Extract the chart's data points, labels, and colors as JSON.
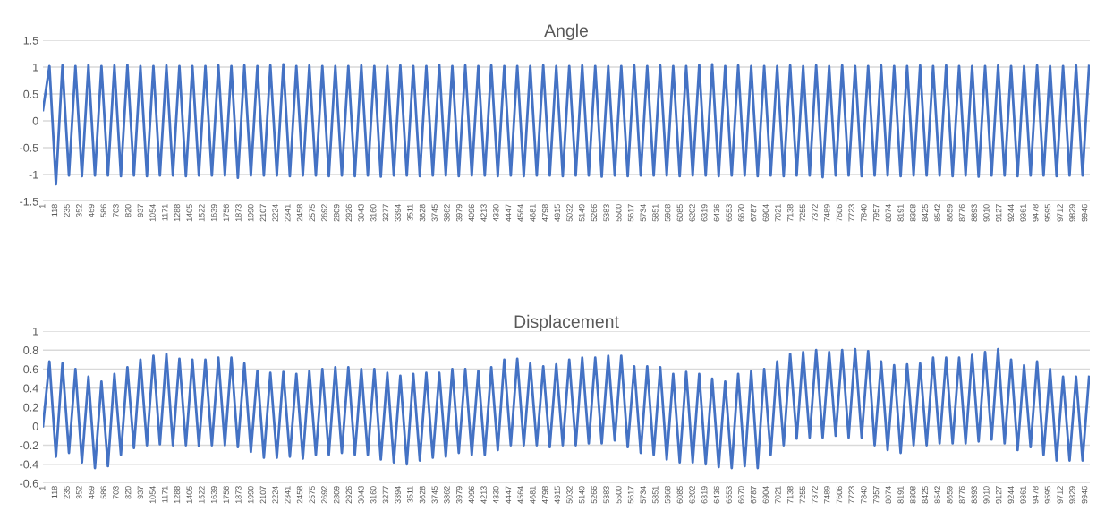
{
  "chart_data": [
    {
      "type": "line",
      "title": "Angle",
      "grid": "y",
      "line_style": "solid",
      "marker": "none",
      "xlim": [
        1,
        9990
      ],
      "xticks": [
        1,
        118,
        235,
        352,
        469,
        586,
        703,
        820,
        937,
        1054,
        1171,
        1288,
        1405,
        1522,
        1639,
        1756,
        1873,
        1990,
        2107,
        2224,
        2341,
        2458,
        2575,
        2692,
        2809,
        2926,
        3043,
        3160,
        3277,
        3394,
        3511,
        3628,
        3745,
        3862,
        3979,
        4096,
        4213,
        4330,
        4447,
        4564,
        4681,
        4798,
        4915,
        5032,
        5149,
        5266,
        5383,
        5500,
        5617,
        5734,
        5851,
        5968,
        6085,
        6202,
        6319,
        6436,
        6553,
        6670,
        6787,
        6904,
        7021,
        7138,
        7255,
        7372,
        7489,
        7606,
        7723,
        7840,
        7957,
        8074,
        8191,
        8308,
        8425,
        8542,
        8659,
        8776,
        8893,
        9010,
        9127,
        9244,
        9361,
        9478,
        9595,
        9712,
        9829,
        9946
      ],
      "ylim": [
        -1.5,
        1.5
      ],
      "yticks": [
        {
          "value": -1.5,
          "label": "-1.5"
        },
        {
          "value": -1,
          "label": "-1"
        },
        {
          "value": -0.5,
          "label": "-0.5"
        },
        {
          "value": 0,
          "label": "0"
        },
        {
          "value": 0.5,
          "label": "0.5"
        },
        {
          "value": 1,
          "label": "1"
        },
        {
          "value": 1.5,
          "label": "1.5"
        }
      ],
      "x": [
        1,
        63,
        125,
        187,
        249,
        311,
        373,
        435,
        497,
        559,
        621,
        683,
        745,
        807,
        869,
        931,
        993,
        1055,
        1117,
        1179,
        1241,
        1303,
        1365,
        1427,
        1489,
        1551,
        1613,
        1675,
        1737,
        1799,
        1861,
        1923,
        1985,
        2047,
        2109,
        2171,
        2233,
        2295,
        2357,
        2419,
        2481,
        2543,
        2605,
        2667,
        2729,
        2791,
        2853,
        2915,
        2977,
        3039,
        3101,
        3163,
        3225,
        3287,
        3349,
        3411,
        3473,
        3535,
        3597,
        3659,
        3721,
        3783,
        3845,
        3907,
        3969,
        4031,
        4093,
        4155,
        4217,
        4279,
        4341,
        4403,
        4465,
        4527,
        4589,
        4651,
        4713,
        4775,
        4837,
        4899,
        4961,
        5023,
        5085,
        5147,
        5209,
        5271,
        5333,
        5395,
        5457,
        5519,
        5581,
        5643,
        5705,
        5767,
        5829,
        5891,
        5953,
        6015,
        6077,
        6139,
        6201,
        6263,
        6325,
        6387,
        6449,
        6511,
        6573,
        6635,
        6697,
        6759,
        6821,
        6883,
        6945,
        7007,
        7069,
        7131,
        7193,
        7255,
        7317,
        7379,
        7441,
        7503,
        7565,
        7627,
        7689,
        7751,
        7813,
        7875,
        7937,
        7999,
        8061,
        8123,
        8185,
        8247,
        8309,
        8371,
        8433,
        8495,
        8557,
        8619,
        8681,
        8743,
        8805,
        8867,
        8929,
        8991,
        9053,
        9115,
        9177,
        9239,
        9301,
        9363,
        9425,
        9487,
        9549,
        9611,
        9673,
        9735,
        9797,
        9859,
        9921,
        9983
      ],
      "series": [
        {
          "color": "#4472c4",
          "values": [
            0.2,
            1.02,
            -1.18,
            1.03,
            -1.02,
            1.02,
            -1.03,
            1.04,
            -1.02,
            1.02,
            -1.02,
            1.03,
            -1.03,
            1.04,
            -1.02,
            1.02,
            -1.03,
            1.02,
            -1.02,
            1.03,
            -1.02,
            1.02,
            -1.03,
            1.02,
            -1.02,
            1.02,
            -1.02,
            1.03,
            -1.02,
            1.02,
            -1.06,
            1.03,
            -1.02,
            1.02,
            -1.02,
            1.03,
            -1.02,
            1.05,
            -1.03,
            1.02,
            -1.02,
            1.03,
            -1.02,
            1.02,
            -1.03,
            1.02,
            -1.02,
            1.02,
            -1.03,
            1.03,
            -1.02,
            1.02,
            -1.04,
            1.02,
            -1.02,
            1.03,
            -1.02,
            1.02,
            -1.03,
            1.02,
            -1.02,
            1.04,
            -1.02,
            1.02,
            -1.03,
            1.03,
            -1.02,
            1.02,
            -1.02,
            1.03,
            -1.03,
            1.02,
            -1.02,
            1.02,
            -1.03,
            1.02,
            -1.02,
            1.03,
            -1.02,
            1.02,
            -1.03,
            1.02,
            -1.02,
            1.03,
            -1.02,
            1.02,
            -1.04,
            1.02,
            -1.02,
            1.02,
            -1.03,
            1.03,
            -1.02,
            1.02,
            -1.02,
            1.03,
            -1.02,
            1.02,
            -1.03,
            1.02,
            -1.02,
            1.04,
            -1.02,
            1.05,
            -1.03,
            1.02,
            -1.02,
            1.03,
            -1.02,
            1.02,
            -1.03,
            1.02,
            -1.02,
            1.02,
            -1.03,
            1.03,
            -1.02,
            1.02,
            -1.02,
            1.03,
            -1.05,
            1.02,
            -1.02,
            1.03,
            -1.02,
            1.02,
            -1.03,
            1.02,
            -1.02,
            1.03,
            -1.02,
            1.02,
            -1.03,
            1.02,
            -1.02,
            1.03,
            -1.02,
            1.02,
            -1.02,
            1.03,
            -1.03,
            1.02,
            -1.02,
            1.02,
            -1.04,
            1.02,
            -1.02,
            1.03,
            -1.02,
            1.02,
            -1.03,
            1.02,
            -1.02,
            1.03,
            -1.02,
            1.02,
            -1.03,
            1.02,
            -1.02,
            1.03,
            -1.02,
            1.02
          ]
        }
      ]
    },
    {
      "type": "line",
      "title": "Displacement",
      "grid": "y",
      "line_style": "solid",
      "marker": "none",
      "xlim": [
        1,
        9990
      ],
      "xticks": [
        1,
        118,
        235,
        352,
        469,
        586,
        703,
        820,
        937,
        1054,
        1171,
        1288,
        1405,
        1522,
        1639,
        1756,
        1873,
        1990,
        2107,
        2224,
        2341,
        2458,
        2575,
        2692,
        2809,
        2926,
        3043,
        3160,
        3277,
        3394,
        3511,
        3628,
        3745,
        3862,
        3979,
        4096,
        4213,
        4330,
        4447,
        4564,
        4681,
        4798,
        4915,
        5032,
        5149,
        5266,
        5383,
        5500,
        5617,
        5734,
        5851,
        5968,
        6085,
        6202,
        6319,
        6436,
        6553,
        6670,
        6787,
        6904,
        7021,
        7138,
        7255,
        7372,
        7489,
        7606,
        7723,
        7840,
        7957,
        8074,
        8191,
        8308,
        8425,
        8542,
        8659,
        8776,
        8893,
        9010,
        9127,
        9244,
        9361,
        9478,
        9595,
        9712,
        9829,
        9946
      ],
      "ylim": [
        -0.6,
        1
      ],
      "yticks": [
        {
          "value": -0.6,
          "label": "-0.6"
        },
        {
          "value": -0.4,
          "label": "-0.4"
        },
        {
          "value": -0.2,
          "label": "-0.2"
        },
        {
          "value": 0,
          "label": "0"
        },
        {
          "value": 0.2,
          "label": "0.2"
        },
        {
          "value": 0.4,
          "label": "0.4"
        },
        {
          "value": 0.6,
          "label": "0.6"
        },
        {
          "value": 0.8,
          "label": "0.8"
        },
        {
          "value": 1,
          "label": "1"
        }
      ],
      "x": [
        1,
        63,
        125,
        187,
        249,
        311,
        373,
        435,
        497,
        559,
        621,
        683,
        745,
        807,
        869,
        931,
        993,
        1055,
        1117,
        1179,
        1241,
        1303,
        1365,
        1427,
        1489,
        1551,
        1613,
        1675,
        1737,
        1799,
        1861,
        1923,
        1985,
        2047,
        2109,
        2171,
        2233,
        2295,
        2357,
        2419,
        2481,
        2543,
        2605,
        2667,
        2729,
        2791,
        2853,
        2915,
        2977,
        3039,
        3101,
        3163,
        3225,
        3287,
        3349,
        3411,
        3473,
        3535,
        3597,
        3659,
        3721,
        3783,
        3845,
        3907,
        3969,
        4031,
        4093,
        4155,
        4217,
        4279,
        4341,
        4403,
        4465,
        4527,
        4589,
        4651,
        4713,
        4775,
        4837,
        4899,
        4961,
        5023,
        5085,
        5147,
        5209,
        5271,
        5333,
        5395,
        5457,
        5519,
        5581,
        5643,
        5705,
        5767,
        5829,
        5891,
        5953,
        6015,
        6077,
        6139,
        6201,
        6263,
        6325,
        6387,
        6449,
        6511,
        6573,
        6635,
        6697,
        6759,
        6821,
        6883,
        6945,
        7007,
        7069,
        7131,
        7193,
        7255,
        7317,
        7379,
        7441,
        7503,
        7565,
        7627,
        7689,
        7751,
        7813,
        7875,
        7937,
        7999,
        8061,
        8123,
        8185,
        8247,
        8309,
        8371,
        8433,
        8495,
        8557,
        8619,
        8681,
        8743,
        8805,
        8867,
        8929,
        8991,
        9053,
        9115,
        9177,
        9239,
        9301,
        9363,
        9425,
        9487,
        9549,
        9611,
        9673,
        9735,
        9797,
        9859,
        9921,
        9983
      ],
      "series": [
        {
          "color": "#4472c4",
          "values": [
            0,
            0.68,
            -0.32,
            0.66,
            -0.28,
            0.6,
            -0.38,
            0.52,
            -0.44,
            0.47,
            -0.42,
            0.55,
            -0.3,
            0.62,
            -0.23,
            0.7,
            -0.2,
            0.74,
            -0.19,
            0.76,
            -0.2,
            0.71,
            -0.2,
            0.7,
            -0.21,
            0.7,
            -0.2,
            0.72,
            -0.2,
            0.72,
            -0.22,
            0.66,
            -0.27,
            0.58,
            -0.33,
            0.56,
            -0.33,
            0.57,
            -0.32,
            0.55,
            -0.34,
            0.58,
            -0.3,
            0.6,
            -0.3,
            0.62,
            -0.28,
            0.62,
            -0.3,
            0.6,
            -0.3,
            0.6,
            -0.35,
            0.56,
            -0.38,
            0.53,
            -0.4,
            0.55,
            -0.36,
            0.56,
            -0.33,
            0.56,
            -0.32,
            0.6,
            -0.28,
            0.6,
            -0.3,
            0.58,
            -0.3,
            0.62,
            -0.25,
            0.7,
            -0.2,
            0.71,
            -0.2,
            0.66,
            -0.2,
            0.63,
            -0.22,
            0.65,
            -0.2,
            0.7,
            -0.2,
            0.72,
            -0.18,
            0.72,
            -0.18,
            0.74,
            -0.15,
            0.74,
            -0.22,
            0.63,
            -0.28,
            0.63,
            -0.3,
            0.62,
            -0.35,
            0.55,
            -0.38,
            0.57,
            -0.38,
            0.55,
            -0.4,
            0.5,
            -0.43,
            0.47,
            -0.44,
            0.55,
            -0.42,
            0.58,
            -0.44,
            0.6,
            -0.3,
            0.68,
            -0.2,
            0.76,
            -0.13,
            0.78,
            -0.12,
            0.8,
            -0.12,
            0.78,
            -0.1,
            0.8,
            -0.12,
            0.81,
            -0.12,
            0.79,
            -0.2,
            0.68,
            -0.25,
            0.64,
            -0.28,
            0.65,
            -0.2,
            0.66,
            -0.2,
            0.72,
            -0.18,
            0.72,
            -0.18,
            0.72,
            -0.18,
            0.75,
            -0.16,
            0.78,
            -0.14,
            0.81,
            -0.18,
            0.7,
            -0.25,
            0.64,
            -0.22,
            0.68,
            -0.3,
            0.6,
            -0.36,
            0.52,
            -0.36,
            0.52,
            -0.36,
            0.52
          ]
        }
      ]
    }
  ]
}
